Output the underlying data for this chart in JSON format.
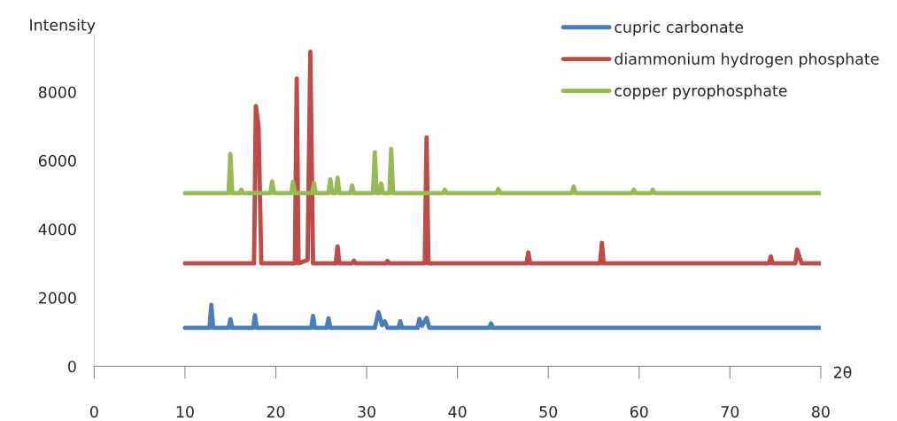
{
  "chart_data": {
    "type": "line",
    "xlabel": "2θ",
    "ylabel": "Intensity",
    "xlim": [
      0,
      80
    ],
    "xticks": [
      0,
      10,
      20,
      30,
      40,
      50,
      60,
      70,
      80
    ],
    "ylim": [
      0,
      9700
    ],
    "yticks": [
      0,
      2000,
      4000,
      6000,
      8000
    ],
    "grid": false,
    "legend": "top right",
    "marker": "none",
    "line_style": "solid",
    "series": [
      {
        "name": "cupric carbonate",
        "color": "#4a7ebb",
        "x": [
          10,
          12.7,
          12.9,
          13.1,
          14.8,
          15.0,
          15.2,
          17.5,
          17.7,
          17.9,
          23.9,
          24.1,
          24.3,
          25.6,
          25.8,
          26.0,
          30.9,
          31.3,
          31.7,
          32.0,
          32.3,
          33.5,
          33.7,
          33.9,
          35.6,
          35.8,
          36.1,
          36.6,
          36.9,
          43.5,
          43.7,
          43.9,
          80
        ],
        "values": [
          1120,
          1120,
          1790,
          1120,
          1120,
          1370,
          1120,
          1120,
          1490,
          1120,
          1120,
          1470,
          1120,
          1120,
          1400,
          1120,
          1120,
          1580,
          1200,
          1310,
          1120,
          1120,
          1310,
          1120,
          1120,
          1380,
          1180,
          1410,
          1120,
          1120,
          1250,
          1120,
          1120
        ]
      },
      {
        "name": "diammonium hydrogen phosphate",
        "color": "#be4b48",
        "x": [
          10,
          17.6,
          17.8,
          18.1,
          18.4,
          22.1,
          22.3,
          22.5,
          23.5,
          23.8,
          24.1,
          26.6,
          26.8,
          27.0,
          28.4,
          28.6,
          28.8,
          32.1,
          32.3,
          32.5,
          36.4,
          36.6,
          36.8,
          47.6,
          47.8,
          48.0,
          55.7,
          55.9,
          56.1,
          74.3,
          74.5,
          74.7,
          77.2,
          77.4,
          77.7,
          77.9,
          80
        ],
        "values": [
          3000,
          3000,
          7590,
          7000,
          3000,
          3000,
          8390,
          3000,
          3100,
          9170,
          3000,
          3000,
          3500,
          3000,
          3000,
          3080,
          3000,
          3000,
          3070,
          3000,
          3000,
          6680,
          3000,
          3000,
          3320,
          3000,
          3000,
          3600,
          3000,
          3000,
          3200,
          3000,
          3000,
          3400,
          3150,
          3000,
          3000
        ]
      },
      {
        "name": "copper pyrophosphate",
        "color": "#98b954",
        "x": [
          10,
          14.8,
          15.0,
          15.2,
          16.0,
          16.2,
          16.4,
          19.4,
          19.6,
          19.8,
          21.7,
          21.9,
          22.1,
          24.0,
          24.2,
          24.4,
          25.8,
          26.0,
          26.2,
          26.6,
          26.8,
          27.0,
          28.2,
          28.4,
          28.6,
          30.7,
          30.9,
          31.1,
          31.4,
          31.6,
          31.8,
          32.5,
          32.7,
          32.9,
          38.4,
          38.6,
          38.8,
          44.3,
          44.5,
          44.7,
          52.6,
          52.8,
          53.0,
          59.2,
          59.4,
          59.6,
          61.3,
          61.5,
          61.7,
          80
        ],
        "values": [
          5050,
          5050,
          6190,
          5050,
          5050,
          5150,
          5050,
          5050,
          5390,
          5050,
          5050,
          5380,
          5050,
          5050,
          5350,
          5050,
          5050,
          5450,
          5050,
          5050,
          5500,
          5050,
          5050,
          5270,
          5050,
          5050,
          6240,
          5050,
          5050,
          5330,
          5050,
          5050,
          6340,
          5050,
          5050,
          5150,
          5050,
          5050,
          5170,
          5050,
          5050,
          5240,
          5050,
          5050,
          5150,
          5050,
          5050,
          5150,
          5050,
          5050
        ]
      }
    ]
  }
}
